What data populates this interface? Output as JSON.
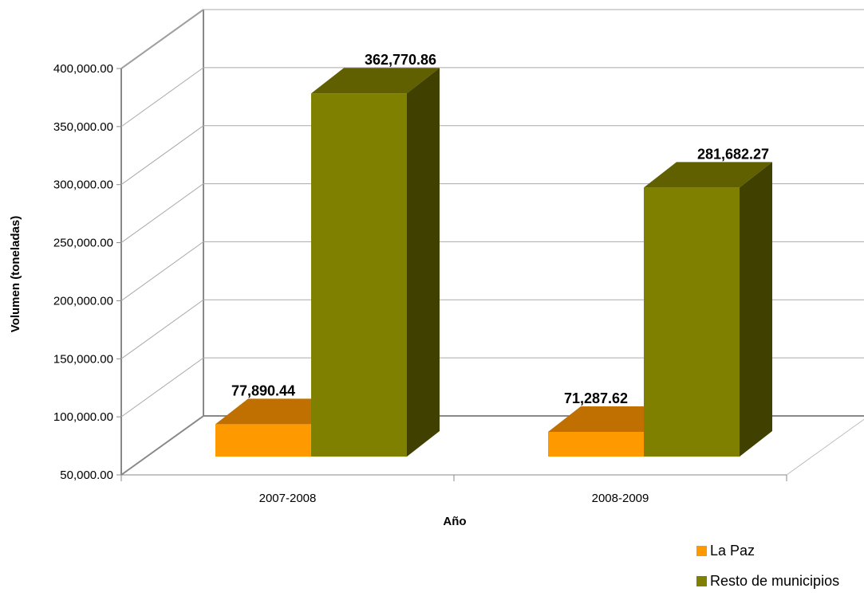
{
  "chart_data": {
    "type": "bar",
    "title": "",
    "xlabel": "Año",
    "ylabel": "Volumen (toneladas)",
    "categories": [
      "2007-2008",
      "2008-2009"
    ],
    "series": [
      {
        "name": "La Paz",
        "values": [
          77890.44,
          71287.62
        ],
        "labels": [
          "77,890.44",
          "71,287.62"
        ],
        "color": "#ff9900",
        "top_color": "#c07000",
        "side_color": "#a05800"
      },
      {
        "name": "Resto de municipios",
        "values": [
          362770.86,
          281682.27
        ],
        "labels": [
          "362,770.86",
          "281,682.27"
        ],
        "color": "#808000",
        "top_color": "#606000",
        "side_color": "#404000"
      }
    ],
    "ylim": [
      50000,
      400000
    ],
    "yticks": [
      {
        "value": 50000,
        "label": "50,000.00"
      },
      {
        "value": 100000,
        "label": "100,000.00"
      },
      {
        "value": 150000,
        "label": "150,000.00"
      },
      {
        "value": 200000,
        "label": "200,000.00"
      },
      {
        "value": 250000,
        "label": "250,000.00"
      },
      {
        "value": 300000,
        "label": "300,000.00"
      },
      {
        "value": 350000,
        "label": "350,000.00"
      },
      {
        "value": 400000,
        "label": "400,000.00"
      }
    ],
    "grid": true,
    "legend_position": "bottom-right"
  }
}
